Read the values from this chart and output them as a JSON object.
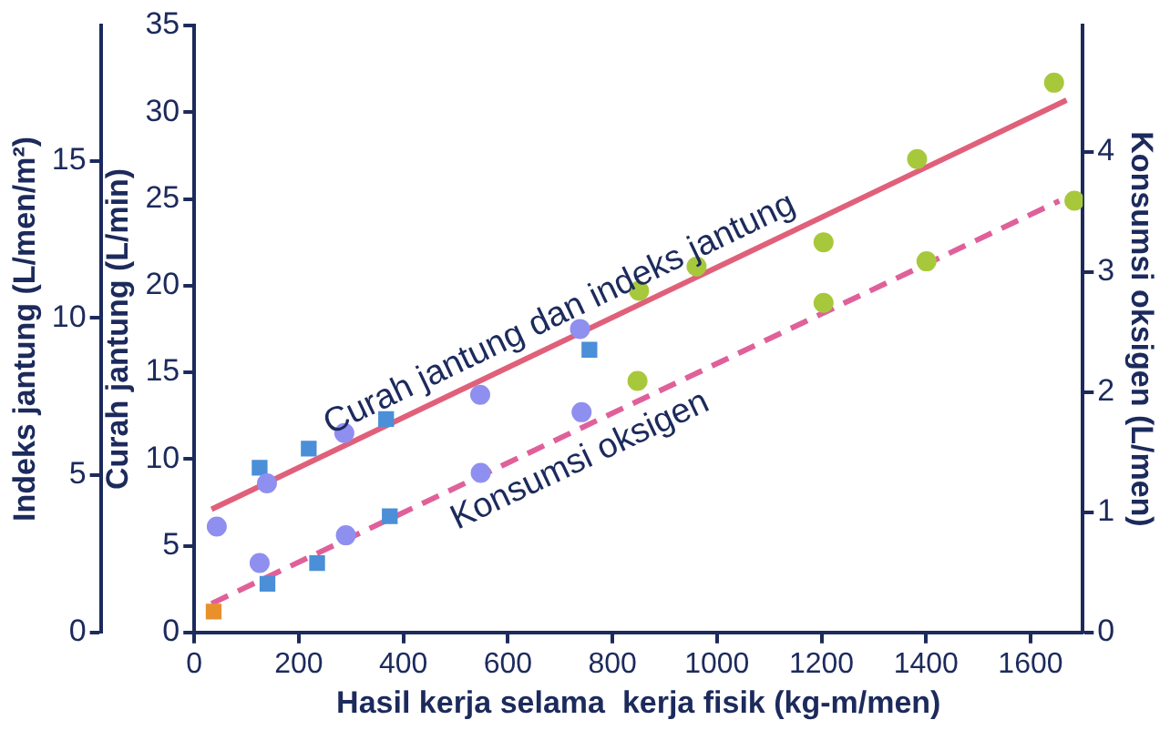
{
  "chart_data": {
    "type": "scatter",
    "xlabel": "Hasil kerja selama  kerja fisik (kg-m/men)",
    "ylabel": "Curah jantung (L/min)",
    "y2label": "Konsumsi oksigen (L/men)",
    "y3label": "Indeks jantung (L/men/m²)",
    "xlim": [
      0,
      1700
    ],
    "xticks": [
      0,
      200,
      400,
      600,
      800,
      1000,
      1200,
      1400,
      1600
    ],
    "ylim": [
      0,
      35
    ],
    "yticks": [
      0,
      5,
      10,
      15,
      20,
      25,
      30,
      35
    ],
    "y2lim": [
      0,
      5.05
    ],
    "y2ticks": [
      0,
      1,
      2,
      3,
      4
    ],
    "y3lim": [
      0,
      19.3
    ],
    "y3ticks": [
      0,
      5,
      10,
      15
    ],
    "grid": false,
    "legend": false,
    "series": [
      {
        "marker": "square",
        "color": "#e8902c",
        "x": [
          37
        ],
        "values": [
          1.2
        ]
      },
      {
        "marker": "circle",
        "color": "#8f8ff0",
        "x": [
          43,
          139,
          125,
          287,
          290,
          547,
          548,
          738,
          741
        ],
        "values": [
          6.1,
          8.6,
          4.0,
          11.5,
          5.6,
          13.7,
          9.2,
          17.5,
          12.7
        ]
      },
      {
        "marker": "square",
        "color": "#4a8fd8",
        "x": [
          125,
          140,
          219,
          235,
          367,
          374,
          756
        ],
        "values": [
          9.5,
          2.8,
          10.6,
          4.0,
          12.3,
          6.7,
          16.3
        ]
      },
      {
        "marker": "circle",
        "color": "#a8c83c",
        "x": [
          851,
          848,
          961,
          1204,
          1204,
          1383,
          1401,
          1645,
          1684
        ],
        "values": [
          19.7,
          14.5,
          21.1,
          22.5,
          19.0,
          27.3,
          21.4,
          31.7,
          24.9
        ]
      },
      {
        "type": "line",
        "name": "Curah jantung dan indeks jantung",
        "marker": "none",
        "line_style": "solid",
        "color": "#e0607a",
        "x": [
          33,
          1669
        ],
        "values": [
          7.1,
          30.7
        ]
      },
      {
        "type": "line",
        "name": "Konsumsi oksigen",
        "axis": "y2",
        "marker": "none",
        "line_style": "dashed",
        "color": "#e0609a",
        "x": [
          33,
          1655
        ],
        "values": [
          0.24,
          3.59
        ]
      }
    ]
  }
}
